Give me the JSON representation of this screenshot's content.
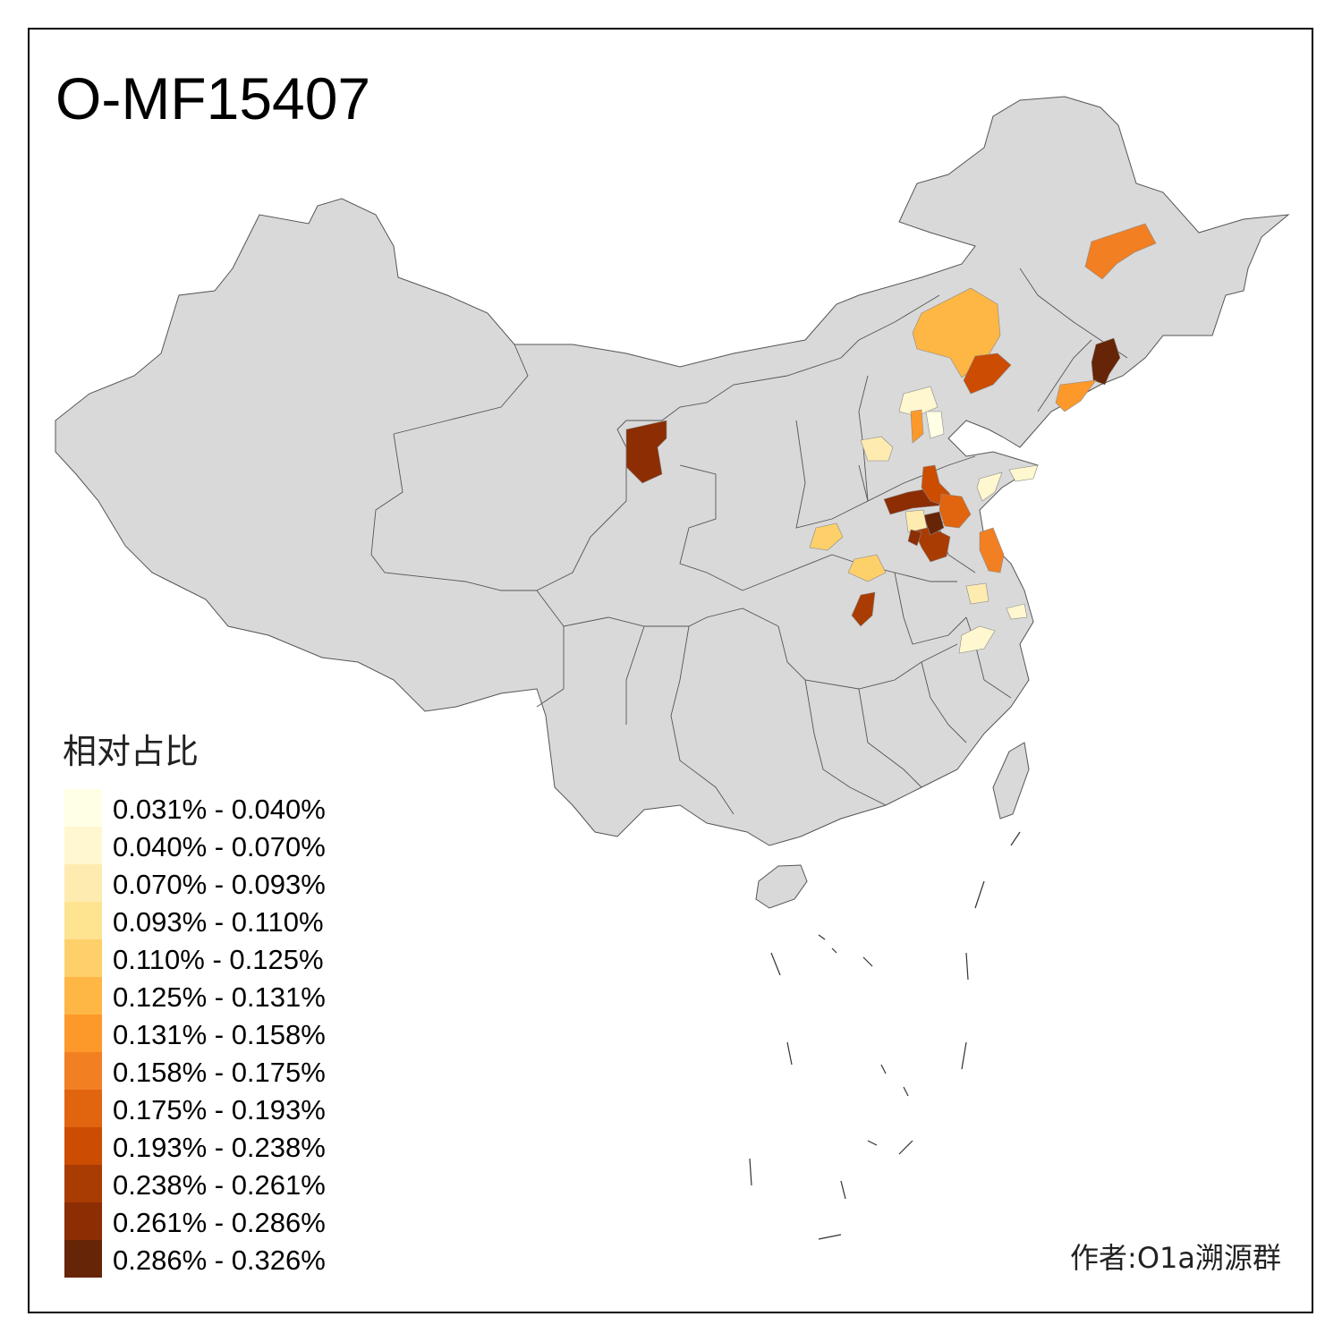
{
  "title": "O-MF15407",
  "legend": {
    "title": "相对占比",
    "items": [
      {
        "label": "0.031% - 0.040%",
        "color": "#ffffe5"
      },
      {
        "label": "0.040% - 0.070%",
        "color": "#fff7cf"
      },
      {
        "label": "0.070% - 0.093%",
        "color": "#feebb0"
      },
      {
        "label": "0.093% - 0.110%",
        "color": "#fee391"
      },
      {
        "label": "0.110% - 0.125%",
        "color": "#fed06a"
      },
      {
        "label": "0.125% - 0.131%",
        "color": "#feb645"
      },
      {
        "label": "0.131% - 0.158%",
        "color": "#fd992a"
      },
      {
        "label": "0.158% - 0.175%",
        "color": "#f27f22"
      },
      {
        "label": "0.175% - 0.193%",
        "color": "#e1640e"
      },
      {
        "label": "0.193% - 0.238%",
        "color": "#cc4c02"
      },
      {
        "label": "0.238% - 0.261%",
        "color": "#a93c03"
      },
      {
        "label": "0.261% - 0.286%",
        "color": "#8c2d04"
      },
      {
        "label": "0.286% - 0.326%",
        "color": "#662506"
      }
    ]
  },
  "author": "作者:O1a溯源群",
  "map": {
    "base_fill": "#d9d9d9",
    "border_color": "#555555",
    "highlighted_regions": [
      {
        "region": "heilongjiang-north-region",
        "bin": 7
      },
      {
        "region": "inner-mongolia-east-region",
        "bin": 5
      },
      {
        "region": "liaoning-west-region",
        "bin": 9
      },
      {
        "region": "jilin-east-region",
        "bin": 12
      },
      {
        "region": "liaoning-south-region",
        "bin": 6
      },
      {
        "region": "beijing-region",
        "bin": 1
      },
      {
        "region": "hebei-region",
        "bin": 6
      },
      {
        "region": "tianjin-region",
        "bin": 0
      },
      {
        "region": "shanxi-region",
        "bin": 2
      },
      {
        "region": "ningxia-region",
        "bin": 11
      },
      {
        "region": "shandong-east-region",
        "bin": 1
      },
      {
        "region": "shandong-peninsula-region",
        "bin": 1
      },
      {
        "region": "henan-north-region",
        "bin": 11
      },
      {
        "region": "henan-center-region",
        "bin": 9
      },
      {
        "region": "henan-east-region",
        "bin": 8
      },
      {
        "region": "henan-south-region",
        "bin": 10
      },
      {
        "region": "henan-dark-core-region",
        "bin": 12
      },
      {
        "region": "henan-pale-region",
        "bin": 2
      },
      {
        "region": "henan-west-region",
        "bin": 11
      },
      {
        "region": "jiangsu-north-region",
        "bin": 7
      },
      {
        "region": "shaanxi-region",
        "bin": 4
      },
      {
        "region": "henan-southwest-region",
        "bin": 4
      },
      {
        "region": "hubei-region",
        "bin": 10
      },
      {
        "region": "anhui-north-region",
        "bin": 2
      },
      {
        "region": "jiangsu-south-region",
        "bin": 1
      },
      {
        "region": "anhui-south-region",
        "bin": 1
      }
    ]
  }
}
